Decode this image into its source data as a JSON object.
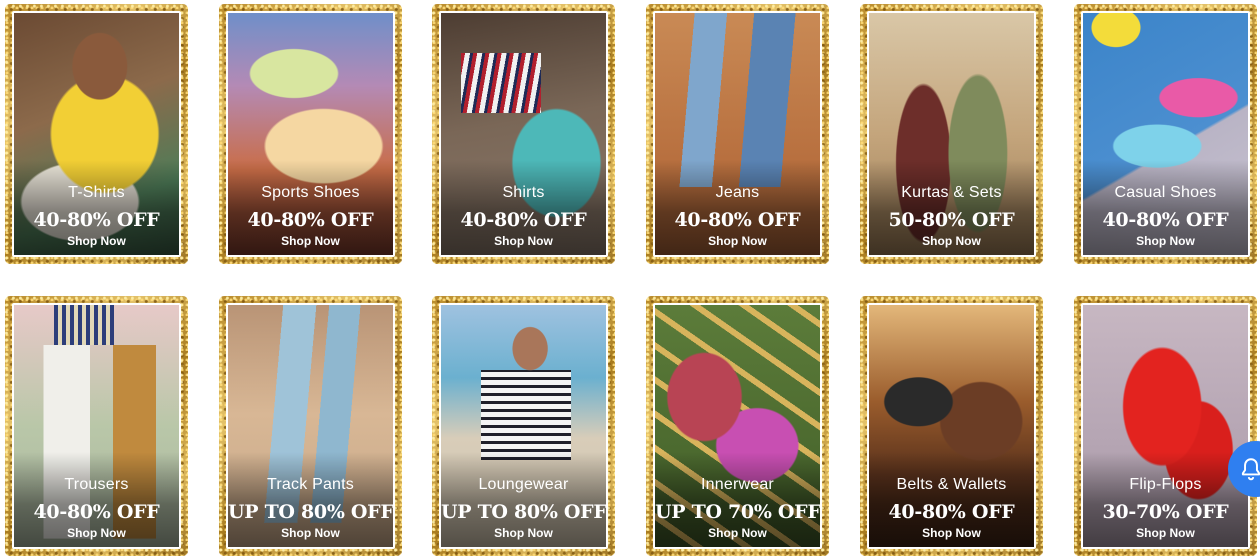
{
  "categories": [
    {
      "name": "T-Shirts",
      "offer": "40-80% OFF",
      "cta": "Shop Now"
    },
    {
      "name": "Sports Shoes",
      "offer": "40-80% OFF",
      "cta": "Shop Now"
    },
    {
      "name": "Shirts",
      "offer": "40-80% OFF",
      "cta": "Shop Now"
    },
    {
      "name": "Jeans",
      "offer": "40-80% OFF",
      "cta": "Shop Now"
    },
    {
      "name": "Kurtas & Sets",
      "offer": "50-80% OFF",
      "cta": "Shop Now"
    },
    {
      "name": "Casual Shoes",
      "offer": "40-80% OFF",
      "cta": "Shop Now"
    },
    {
      "name": "Trousers",
      "offer": "40-80% OFF",
      "cta": "Shop Now"
    },
    {
      "name": "Track Pants",
      "offer": "UP TO 80% OFF",
      "cta": "Shop Now"
    },
    {
      "name": "Loungewear",
      "offer": "UP TO 80% OFF",
      "cta": "Shop Now"
    },
    {
      "name": "Innerwear",
      "offer": "UP TO 70% OFF",
      "cta": "Shop Now"
    },
    {
      "name": "Belts & Wallets",
      "offer": "40-80% OFF",
      "cta": "Shop Now"
    },
    {
      "name": "Flip-Flops",
      "offer": "30-70% OFF",
      "cta": "Shop Now"
    }
  ],
  "widgets": {
    "notification_icon": "bell-icon"
  },
  "colors": {
    "gold": "#c9a03f",
    "bell": "#2f7ff0"
  }
}
